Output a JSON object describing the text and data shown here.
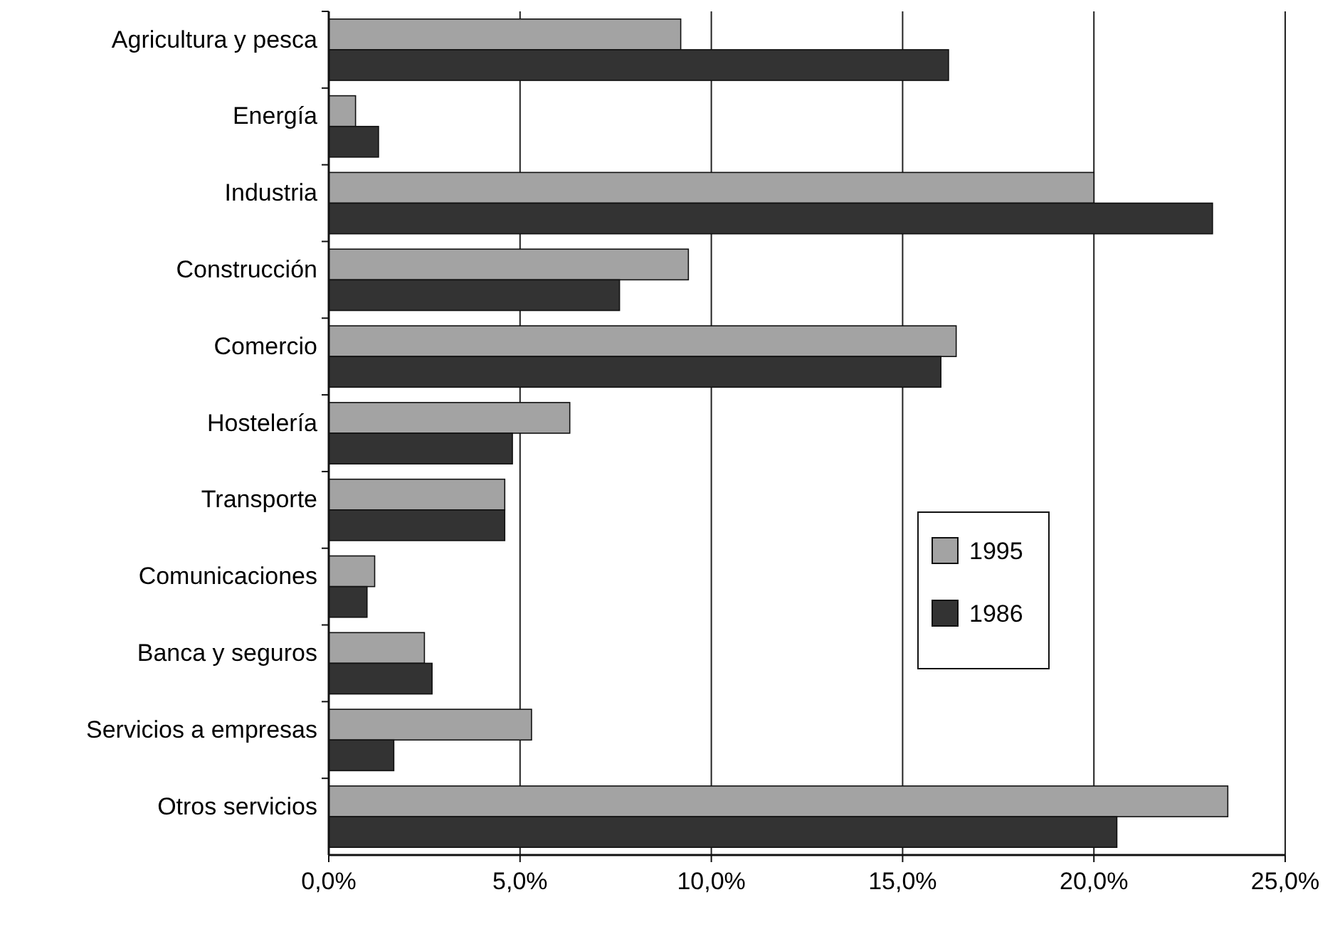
{
  "chart_data": {
    "type": "bar",
    "orientation": "horizontal",
    "categories": [
      "Agricultura y pesca",
      "Energía",
      "Industria",
      "Construcción",
      "Comercio",
      "Hostelería",
      "Transporte",
      "Comunicaciones",
      "Banca y seguros",
      "Servicios a empresas",
      "Otros servicios"
    ],
    "series": [
      {
        "name": "1995",
        "color": "#a3a3a3",
        "values": [
          9.2,
          0.7,
          20.0,
          9.4,
          16.4,
          6.3,
          4.6,
          1.2,
          2.5,
          5.3,
          23.5
        ]
      },
      {
        "name": "1986",
        "color": "#333333",
        "values": [
          16.2,
          1.3,
          23.1,
          7.6,
          16.0,
          4.8,
          4.6,
          1.0,
          2.7,
          1.7,
          20.6
        ]
      }
    ],
    "xlim": [
      0,
      25
    ],
    "xticks": [
      {
        "value": 0,
        "label": "0,0%"
      },
      {
        "value": 5,
        "label": "5,0%"
      },
      {
        "value": 10,
        "label": "10,0%"
      },
      {
        "value": 15,
        "label": "15,0%"
      },
      {
        "value": 20,
        "label": "20,0%"
      },
      {
        "value": 25,
        "label": "25,0%"
      }
    ],
    "grid": "x",
    "legend": "right"
  }
}
